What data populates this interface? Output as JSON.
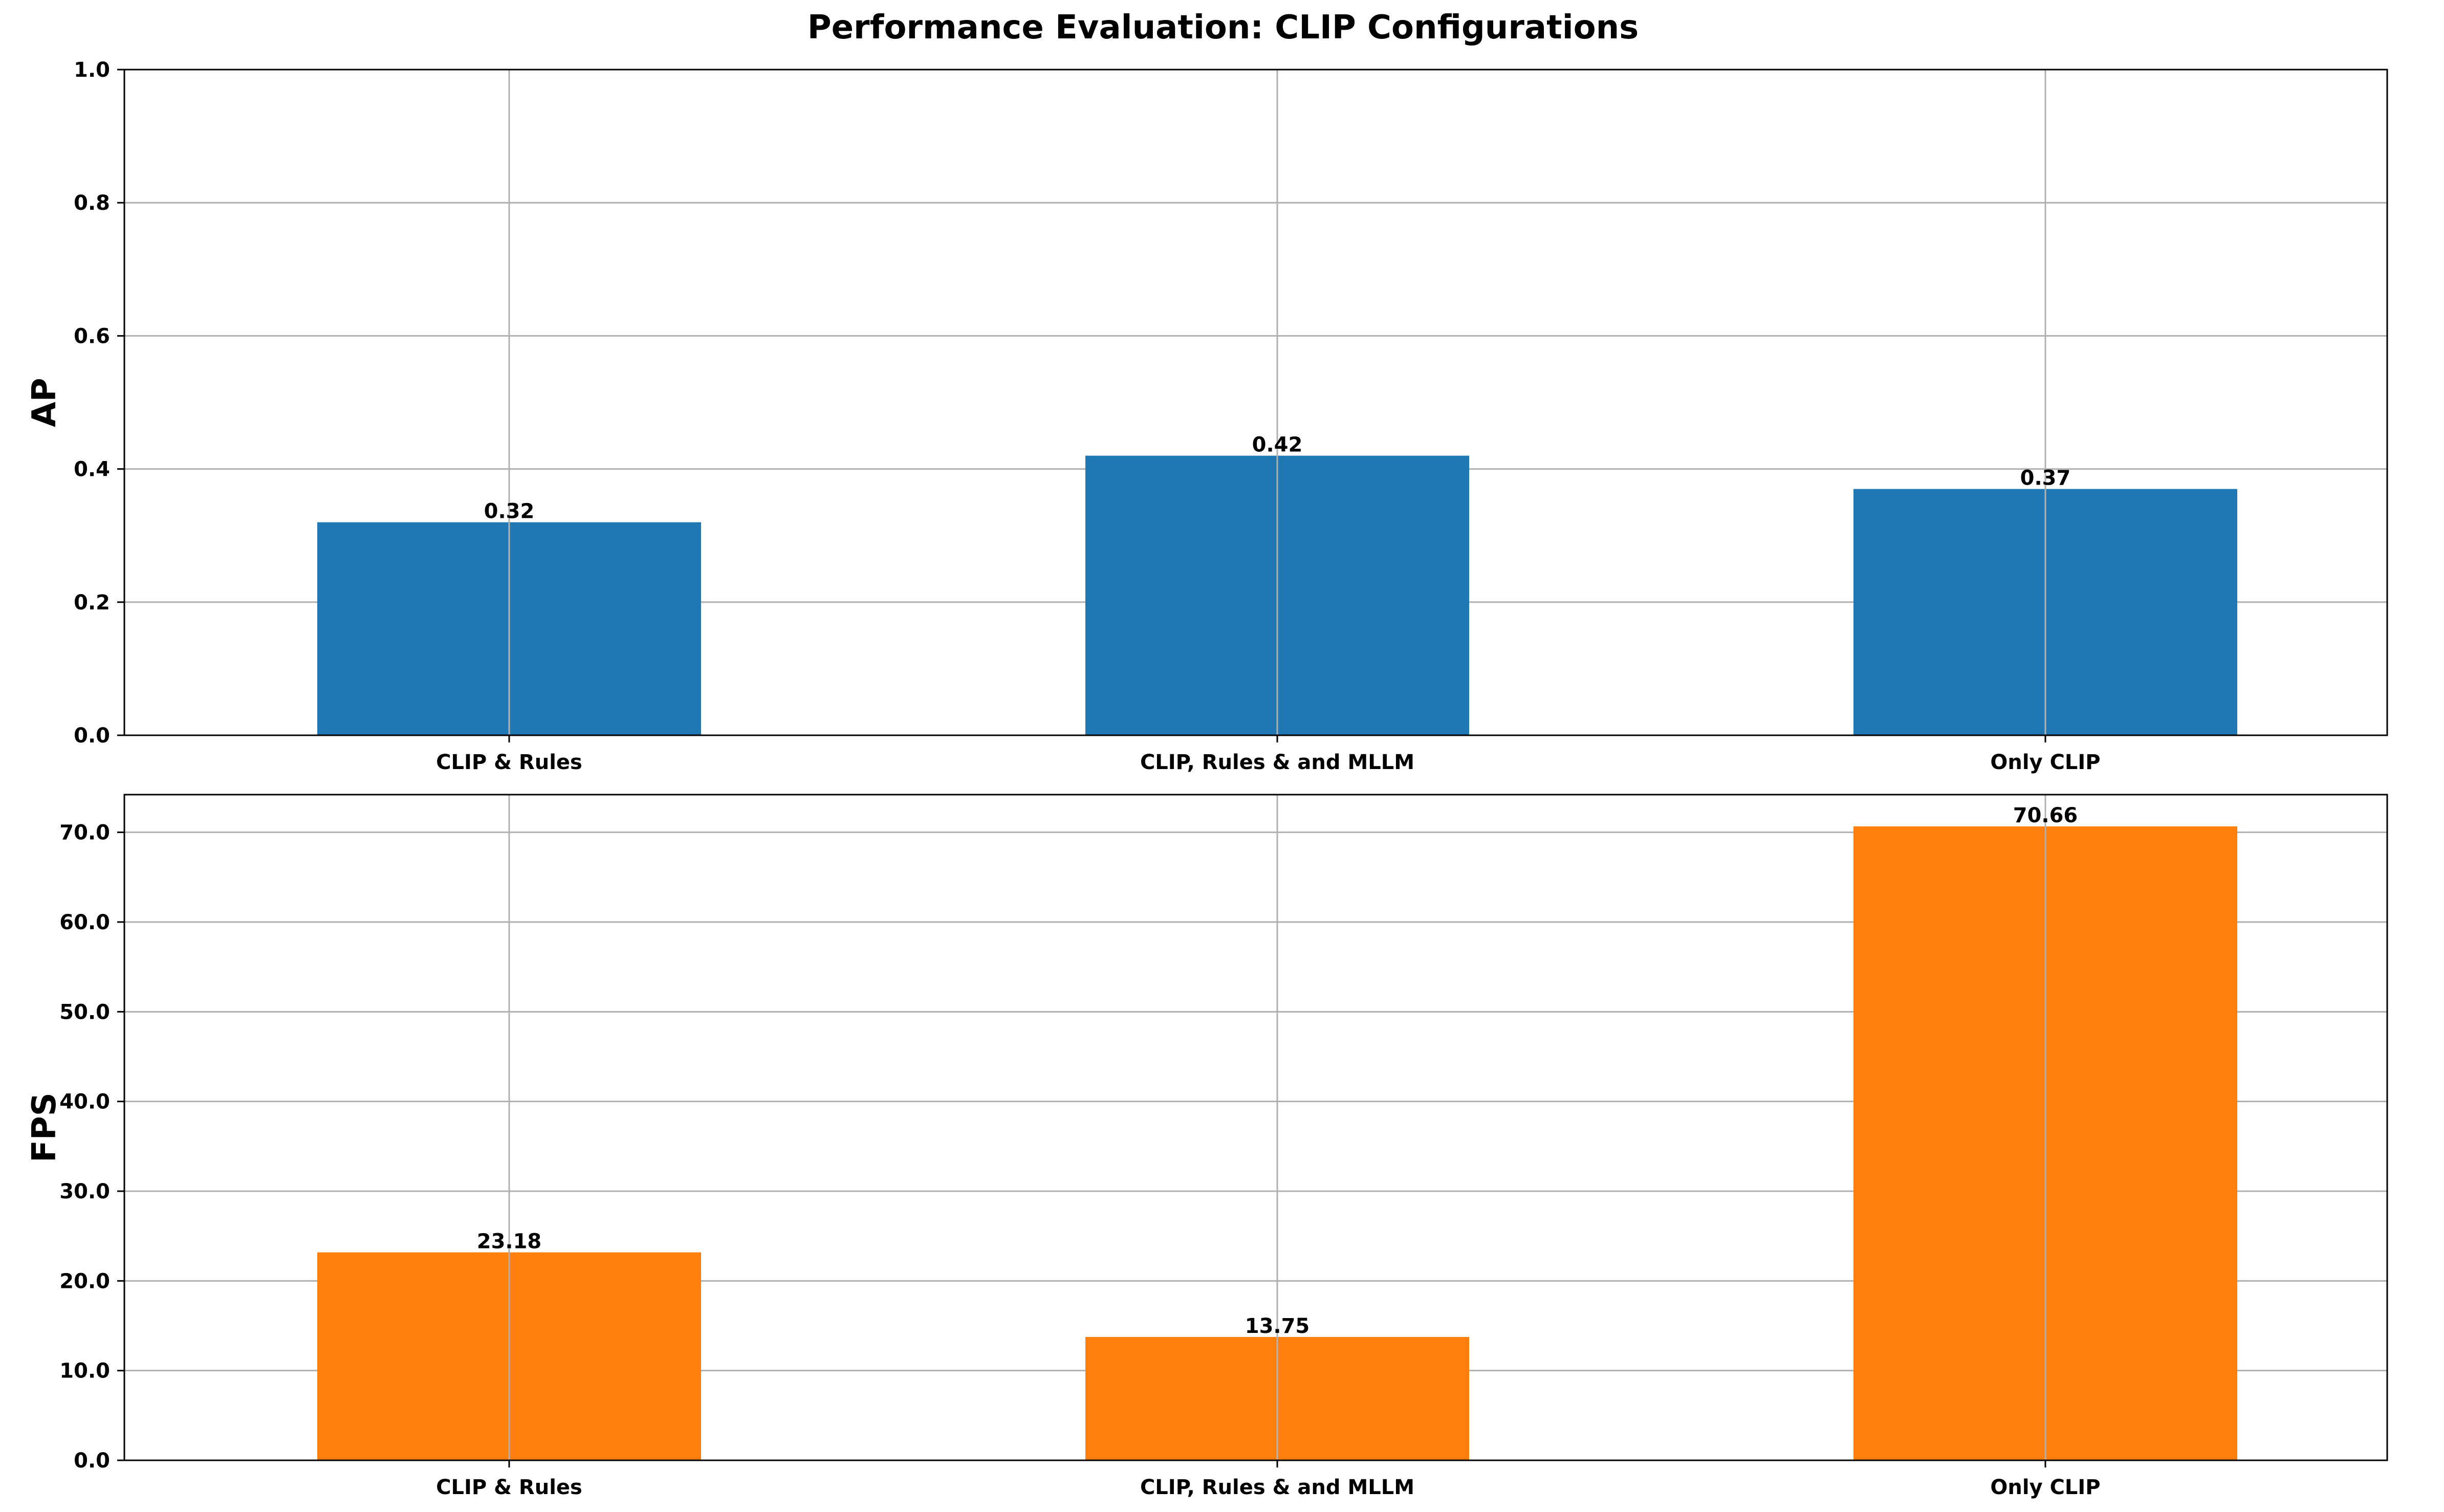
{
  "title": "Performance Evaluation: CLIP Configurations",
  "chart_data": [
    {
      "type": "bar",
      "categories": [
        "CLIP & Rules",
        "CLIP, Rules & and MLLM",
        "Only CLIP"
      ],
      "values": [
        0.32,
        0.42,
        0.37
      ],
      "data_labels": [
        "0.32",
        "0.42",
        "0.37"
      ],
      "xlabel": "",
      "ylabel": "AP",
      "ylim": [
        0,
        1.0
      ],
      "yticks": [
        0.0,
        0.2,
        0.4,
        0.6,
        0.8,
        1.0
      ],
      "ytick_labels": [
        "0.0",
        "0.2",
        "0.4",
        "0.6",
        "0.8",
        "1.0"
      ],
      "grid": true,
      "color": "#1f77b4"
    },
    {
      "type": "bar",
      "categories": [
        "CLIP & Rules",
        "CLIP, Rules & and MLLM",
        "Only CLIP"
      ],
      "values": [
        23.18,
        13.75,
        70.66
      ],
      "data_labels": [
        "23.18",
        "13.75",
        "70.66"
      ],
      "xlabel": "",
      "ylabel": "FPS",
      "ylim": [
        0,
        74.2
      ],
      "yticks": [
        0,
        10,
        20,
        30,
        40,
        50,
        60,
        70
      ],
      "ytick_labels": [
        "0.0",
        "10.0",
        "20.0",
        "30.0",
        "40.0",
        "50.0",
        "60.0",
        "70.0"
      ],
      "grid": true,
      "color": "#ff7f0e"
    }
  ]
}
